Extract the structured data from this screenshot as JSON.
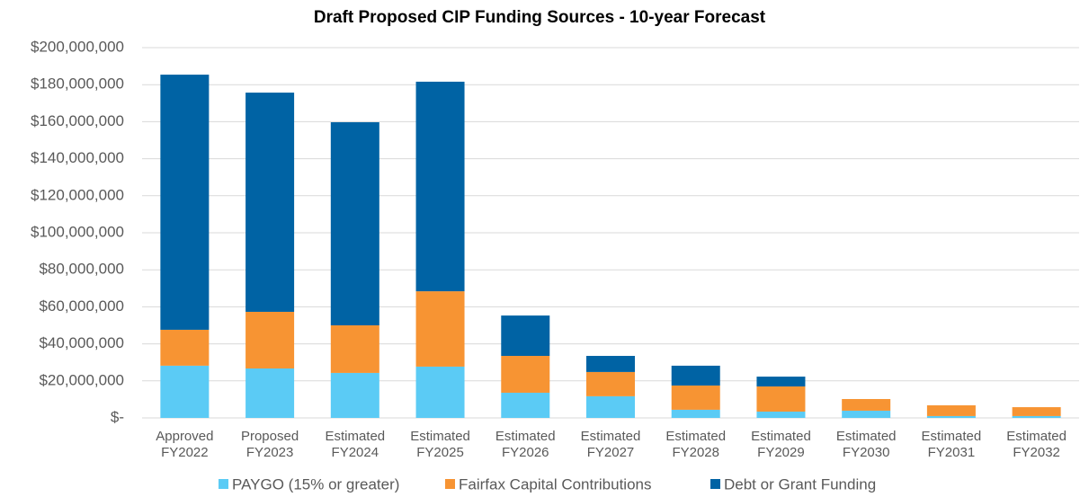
{
  "chart_data": {
    "type": "stacked_bar",
    "title": "Draft Proposed CIP Funding Sources - 10-year Forecast",
    "categories": [
      [
        "Approved",
        "FY2022"
      ],
      [
        "Proposed",
        "FY2023"
      ],
      [
        "Estimated",
        "FY2024"
      ],
      [
        "Estimated",
        "FY2025"
      ],
      [
        "Estimated",
        "FY2026"
      ],
      [
        "Estimated",
        "FY2027"
      ],
      [
        "Estimated",
        "FY2028"
      ],
      [
        "Estimated",
        "FY2029"
      ],
      [
        "Estimated",
        "FY2030"
      ],
      [
        "Estimated",
        "FY2031"
      ],
      [
        "Estimated",
        "FY2032"
      ]
    ],
    "series": [
      {
        "name": "PAYGO (15% or greater)",
        "color": "#5bcbf5",
        "values": [
          28200000,
          26700000,
          24300000,
          27700000,
          13600000,
          11700000,
          4400000,
          3400000,
          3900000,
          1000000,
          1000000
        ]
      },
      {
        "name": "Fairfax Capital Contributions",
        "color": "#f79433",
        "values": [
          19400000,
          30600000,
          25700000,
          40700000,
          19900000,
          13100000,
          13100000,
          13600000,
          6300000,
          5800000,
          4800000
        ]
      },
      {
        "name": "Debt or Grant Funding",
        "color": "#0063a4",
        "values": [
          137800000,
          118400000,
          109700000,
          113200000,
          21800000,
          8700000,
          10700000,
          5300000,
          0,
          0,
          0
        ]
      }
    ],
    "ylim": [
      0,
      200000000
    ],
    "yticks": [
      {
        "value": 0,
        "label": "$-"
      },
      {
        "value": 20000000,
        "label": "$20,000,000"
      },
      {
        "value": 40000000,
        "label": "$40,000,000"
      },
      {
        "value": 60000000,
        "label": "$60,000,000"
      },
      {
        "value": 80000000,
        "label": "$80,000,000"
      },
      {
        "value": 100000000,
        "label": "$100,000,000"
      },
      {
        "value": 120000000,
        "label": "$120,000,000"
      },
      {
        "value": 140000000,
        "label": "$140,000,000"
      },
      {
        "value": 160000000,
        "label": "$160,000,000"
      },
      {
        "value": 180000000,
        "label": "$180,000,000"
      },
      {
        "value": 200000000,
        "label": "$200,000,000"
      }
    ],
    "grid": true,
    "legend": "bottom"
  }
}
